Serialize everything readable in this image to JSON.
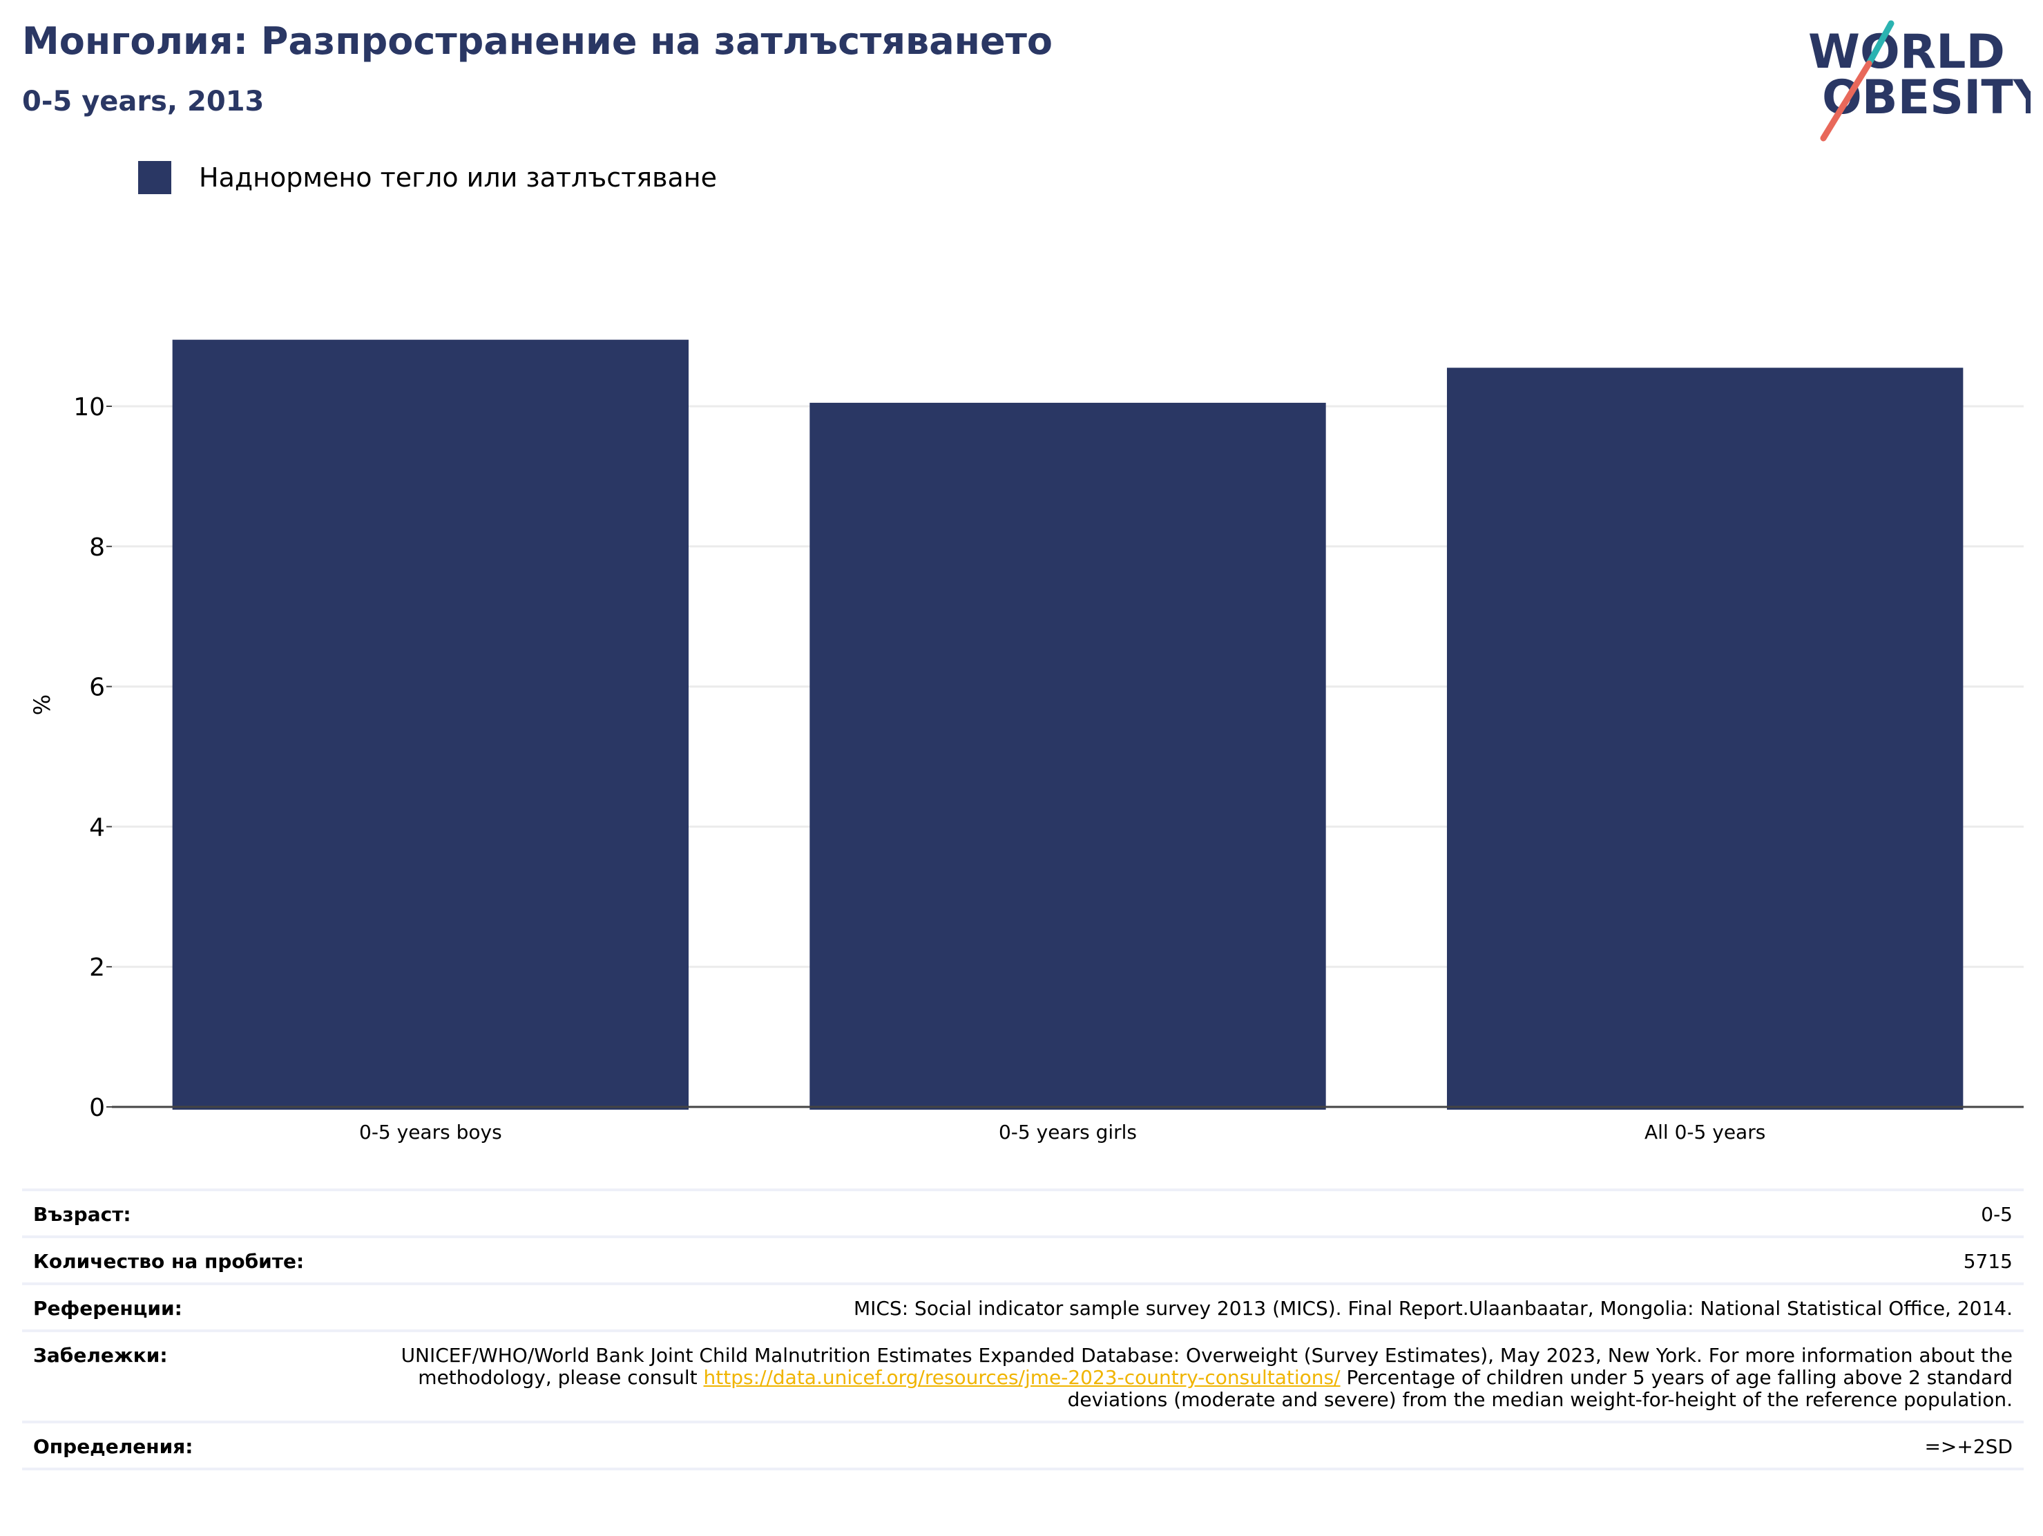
{
  "header": {
    "title": "Монголия: Разпространение на затлъстяването",
    "subtitle": "0-5 years, 2013"
  },
  "logo": {
    "line1": "WORLD",
    "line2": "OBESITY",
    "colors": {
      "text": "#2a3764",
      "teal": "#2bb3b1",
      "coral": "#e8685a"
    }
  },
  "legend": {
    "label": "Наднормено тегло или затлъстяване",
    "color": "#2a3764"
  },
  "chart_data": {
    "type": "bar",
    "categories": [
      "0-5 years boys",
      "0-5 years girls",
      "All 0-5 years"
    ],
    "series": [
      {
        "name": "Наднормено тегло или затлъстяване",
        "values": [
          10.95,
          10.05,
          10.55
        ],
        "color": "#2a3764"
      }
    ],
    "ylabel": "%",
    "ylim": [
      0,
      11.5
    ],
    "yticks": [
      0,
      2,
      4,
      6,
      8,
      10
    ],
    "grid": true,
    "legend_position": "top-left"
  },
  "info": {
    "age_label": "Възраст:",
    "age_value": "0-5",
    "sample_label": "Количество на пробите:",
    "sample_value": "5715",
    "refs_label": "Референции:",
    "refs_value": "MICS: Social indicator sample survey 2013 (MICS). Final Report.Ulaanbaatar, Mongolia: National Statistical Office, 2014.",
    "notes_label": "Забележки:",
    "notes_before": "UNICEF/WHO/World Bank Joint Child Malnutrition Estimates Expanded Database: Overweight (Survey Estimates), May 2023, New York. For more information about the methodology, please consult ",
    "notes_link": "https://data.unicef.org/resources/jme-2023-country-consultations/",
    "notes_after": " Percentage of children under 5 years of age falling above 2 standard deviations (moderate and severe) from the median weight-for-height of the reference population.",
    "defs_label": "Определения:",
    "defs_value": "=>+2SD"
  }
}
